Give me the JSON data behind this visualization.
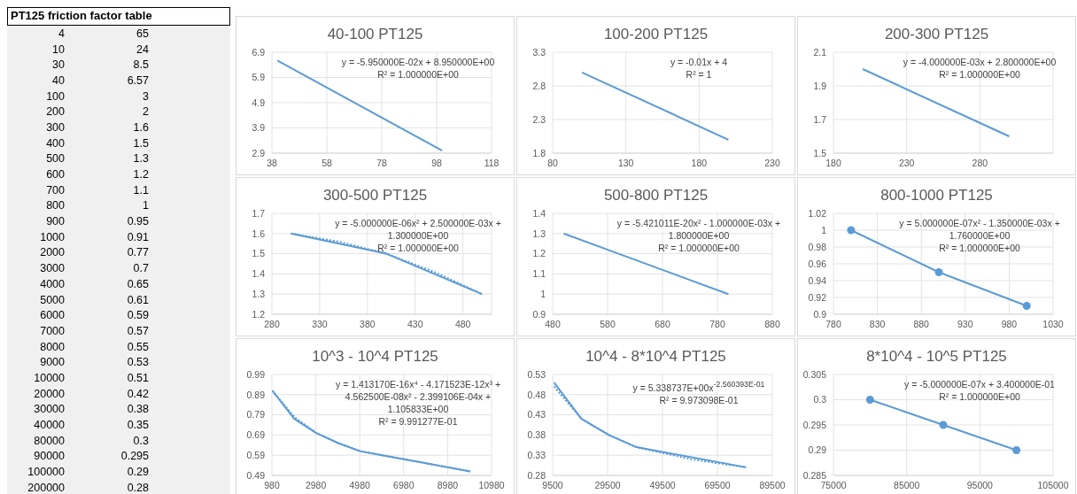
{
  "chart_data": [
    {
      "type": "other",
      "title": "PT125 friction factor table",
      "categories": [
        "4",
        "10",
        "30",
        "40",
        "100",
        "200",
        "300",
        "400",
        "500",
        "600",
        "700",
        "800",
        "900",
        "1000",
        "2000",
        "3000",
        "4000",
        "5000",
        "6000",
        "7000",
        "8000",
        "9000",
        "10000",
        "20000",
        "30000",
        "40000",
        "80000",
        "90000",
        "100000",
        "200000"
      ],
      "values": [
        65,
        24,
        8.5,
        6.57,
        3,
        2,
        1.6,
        1.5,
        1.3,
        1.2,
        1.1,
        1,
        0.95,
        0.91,
        0.77,
        0.7,
        0.65,
        0.61,
        0.59,
        0.57,
        0.55,
        0.53,
        0.51,
        0.42,
        0.38,
        0.35,
        0.3,
        0.295,
        0.29,
        0.28
      ],
      "data_labels": true
    },
    {
      "type": "line",
      "title": "40-100 PT125",
      "series": [
        {
          "color": "#5b9bd5",
          "x": [
            40,
            100
          ],
          "values": [
            6.57,
            3
          ]
        }
      ],
      "xlim": [
        38,
        118
      ],
      "xticks": [
        38,
        58,
        78,
        98,
        118
      ],
      "ylim": [
        2.9,
        6.9
      ],
      "yticks": [
        2.9,
        3.9,
        4.9,
        5.9,
        6.9
      ],
      "grid": true,
      "annotations": [
        "y = -5.950000E-02x + 8.950000E+00",
        "R² = 1.000000E+00"
      ]
    },
    {
      "type": "line",
      "title": "100-200 PT125",
      "series": [
        {
          "color": "#5b9bd5",
          "x": [
            100,
            200
          ],
          "values": [
            3,
            2
          ]
        }
      ],
      "xlim": [
        80,
        230
      ],
      "xticks": [
        80,
        130,
        180,
        230
      ],
      "ylim": [
        1.8,
        3.3
      ],
      "yticks": [
        1.8,
        2.3,
        2.8,
        3.3
      ],
      "grid": true,
      "annotations": [
        "y = -0.01x + 4",
        "R² = 1"
      ]
    },
    {
      "type": "line",
      "title": "200-300 PT125",
      "series": [
        {
          "color": "#5b9bd5",
          "x": [
            200,
            300
          ],
          "values": [
            2,
            1.6
          ]
        }
      ],
      "xlim": [
        180,
        330
      ],
      "xticks": [
        180,
        230,
        280,
        {
          "value": 330,
          "label": null
        }
      ],
      "ylim": [
        1.5,
        2.1
      ],
      "yticks": [
        1.5,
        1.7,
        1.9,
        2.1
      ],
      "grid": true,
      "annotations": [
        "y = -4.000000E-03x + 2.800000E+00",
        "R² = 1.000000E+00"
      ]
    },
    {
      "type": "line",
      "title": "300-500 PT125",
      "series": [
        {
          "color": "#5b9bd5",
          "x": [
            300,
            400,
            500
          ],
          "values": [
            1.6,
            1.5,
            1.3
          ]
        },
        {
          "color": "#5b9bd5",
          "line_style": "dotted",
          "x": [
            300,
            350,
            400,
            450,
            500
          ],
          "values": [
            1.6,
            1.56,
            1.5,
            1.41,
            1.3
          ]
        }
      ],
      "xlim": [
        280,
        510
      ],
      "xticks": [
        280,
        330,
        380,
        430,
        480
      ],
      "ylim": [
        1.2,
        1.7
      ],
      "yticks": [
        1.2,
        1.3,
        1.4,
        1.5,
        1.6,
        1.7
      ],
      "grid": true,
      "annotations": [
        "y = -5.000000E-06x² + 2.500000E-03x + 1.300000E+00",
        "R² = 1.000000E+00"
      ]
    },
    {
      "type": "line",
      "title": "500-800 PT125",
      "series": [
        {
          "color": "#5b9bd5",
          "x": [
            500,
            600,
            700,
            800
          ],
          "values": [
            1.3,
            1.2,
            1.1,
            1
          ]
        }
      ],
      "xlim": [
        480,
        880
      ],
      "xticks": [
        480,
        580,
        680,
        780,
        880
      ],
      "ylim": [
        0.9,
        1.4
      ],
      "yticks": [
        0.9,
        1,
        1.1,
        1.2,
        1.3,
        1.4
      ],
      "grid": true,
      "annotations": [
        "y = -5.421011E-20x² - 1.000000E-03x + 1.800000E+00",
        "R² = 1.000000E+00"
      ]
    },
    {
      "type": "line",
      "title": "800-1000 PT125",
      "marker": "circle",
      "series": [
        {
          "color": "#5b9bd5",
          "x": [
            800,
            900,
            1000
          ],
          "values": [
            1,
            0.95,
            0.91
          ]
        }
      ],
      "xlim": [
        780,
        1030
      ],
      "xticks": [
        780,
        830,
        880,
        930,
        980,
        1030
      ],
      "ylim": [
        0.9,
        1.02
      ],
      "yticks": [
        0.9,
        0.92,
        0.94,
        0.96,
        0.98,
        1,
        1.02
      ],
      "grid": true,
      "annotations": [
        "y = 5.000000E-07x² - 1.350000E-03x + 1.760000E+00",
        "R² = 1.000000E+00"
      ]
    },
    {
      "type": "line",
      "title": "10^3 - 10^4 PT125",
      "series": [
        {
          "color": "#5b9bd5",
          "x": [
            1000,
            2000,
            3000,
            4000,
            5000,
            6000,
            7000,
            8000,
            9000,
            10000
          ],
          "values": [
            0.91,
            0.77,
            0.7,
            0.65,
            0.61,
            0.59,
            0.57,
            0.55,
            0.53,
            0.51
          ]
        },
        {
          "color": "#5b9bd5",
          "line_style": "dotted",
          "x": [
            1000,
            2000,
            3000,
            4000,
            5000,
            6000,
            7000,
            8000,
            9000,
            10000
          ],
          "values": [
            0.91,
            0.78,
            0.7,
            0.65,
            0.61,
            0.59,
            0.57,
            0.55,
            0.53,
            0.51
          ]
        }
      ],
      "xlim": [
        980,
        10980
      ],
      "xticks": [
        980,
        2980,
        4980,
        6980,
        8980,
        10980
      ],
      "ylim": [
        0.49,
        0.99
      ],
      "yticks": [
        0.49,
        0.59,
        0.69,
        0.79,
        0.89,
        0.99
      ],
      "grid": true,
      "annotations": [
        "y = 1.413170E-16x⁴ - 4.171523E-12x³ + 4.562500E-08x² - 2.399106E-04x + 1.105833E+00",
        "R² = 9.991277E-01"
      ]
    },
    {
      "type": "line",
      "title": "10^4 - 8*10^4 PT125",
      "series": [
        {
          "color": "#5b9bd5",
          "x": [
            10000,
            20000,
            30000,
            40000,
            80000
          ],
          "values": [
            0.51,
            0.42,
            0.38,
            0.35,
            0.3
          ]
        },
        {
          "color": "#5b9bd5",
          "line_style": "dotted",
          "x": [
            10000,
            20000,
            30000,
            40000,
            60000,
            80000
          ],
          "values": [
            0.5,
            0.42,
            0.38,
            0.35,
            0.32,
            0.3
          ]
        }
      ],
      "xlim": [
        9500,
        89500
      ],
      "xticks": [
        9500,
        29500,
        49500,
        69500,
        89500
      ],
      "ylim": [
        0.28,
        0.53
      ],
      "yticks": [
        0.28,
        0.33,
        0.38,
        0.43,
        0.48,
        0.53
      ],
      "grid": true,
      "annotations": [
        "y = 5.338737E+00x$^{-2.560393E-01}$",
        "R² = 9.973098E-01"
      ]
    },
    {
      "type": "line",
      "title": "8*10^4 - 10^5 PT125",
      "marker": "circle",
      "series": [
        {
          "color": "#5b9bd5",
          "x": [
            80000,
            90000,
            100000
          ],
          "values": [
            0.3,
            0.295,
            0.29
          ]
        }
      ],
      "xlim": [
        75000,
        105000
      ],
      "xticks": [
        75000,
        85000,
        95000,
        105000
      ],
      "ylim": [
        0.285,
        0.305
      ],
      "yticks": [
        0.285,
        0.29,
        0.295,
        0.3,
        0.305
      ],
      "grid": true,
      "annotations": [
        "y = -5.000000E-07x + 3.400000E-01",
        "R² = 1.000000E+00"
      ]
    }
  ]
}
